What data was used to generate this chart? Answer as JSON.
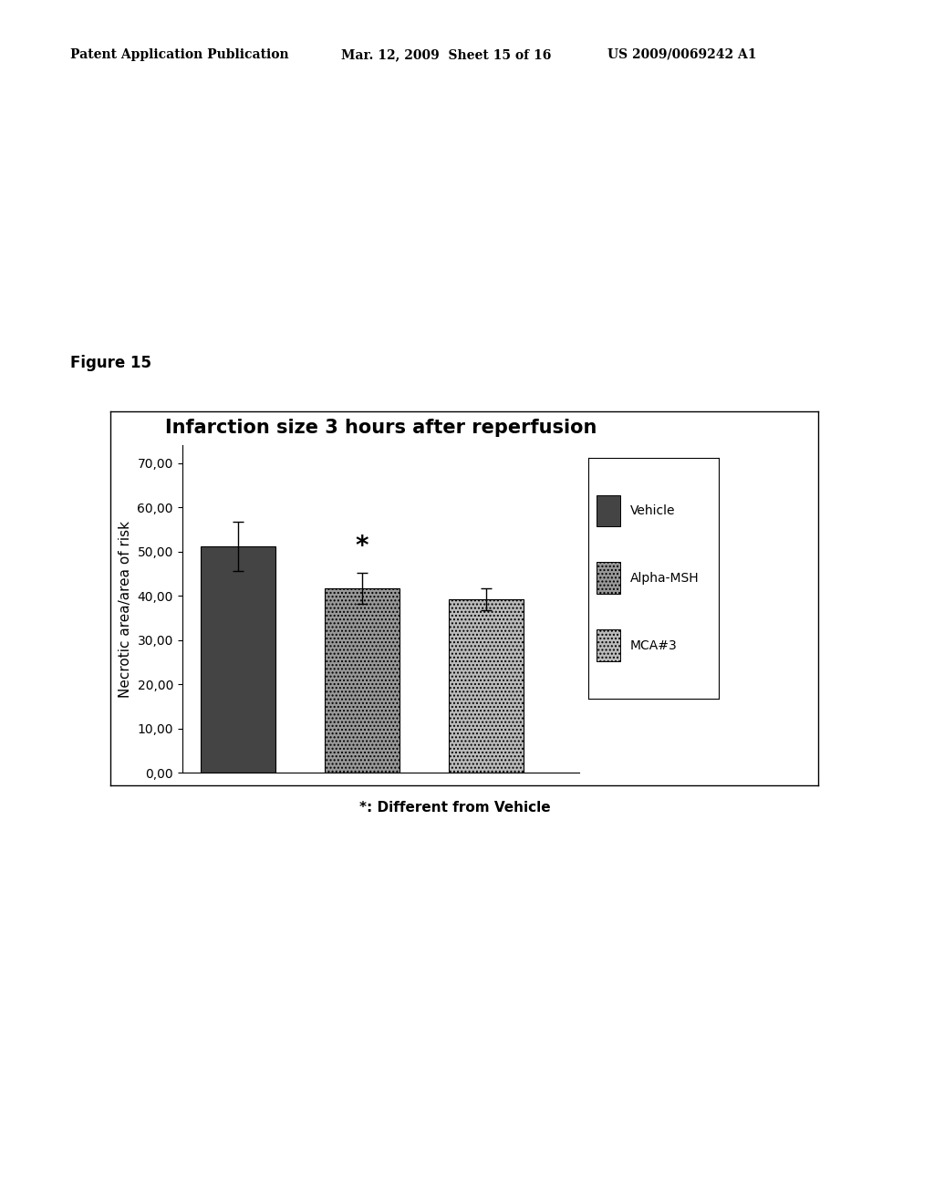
{
  "title": "Infarction size 3 hours after reperfusion",
  "ylabel": "Necrotic area/area of risk",
  "categories": [
    "Vehicle",
    "Alpha-MSH",
    "MCA#3"
  ],
  "values": [
    51.2,
    41.8,
    39.3
  ],
  "errors": [
    5.5,
    3.5,
    2.5
  ],
  "ytick_labels": [
    "0,00",
    "10,00",
    "20,00",
    "30,00",
    "40,00",
    "50,00",
    "60,00",
    "70,00"
  ],
  "ytick_values": [
    0.0,
    10.0,
    20.0,
    30.0,
    40.0,
    50.0,
    60.0,
    70.0
  ],
  "ylim": [
    0,
    74
  ],
  "bar_colors": [
    "#444444",
    "#999999",
    "#bbbbbb"
  ],
  "bar_edgecolor": "#000000",
  "bar_width": 0.6,
  "bar_positions": [
    1,
    2,
    3
  ],
  "legend_labels": [
    "Vehicle",
    "Alpha-MSH",
    "MCA#3"
  ],
  "legend_colors": [
    "#444444",
    "#999999",
    "#bbbbbb"
  ],
  "significance_symbol": "*",
  "significance_bar_idx": 2,
  "header_left": "Patent Application Publication",
  "header_mid": "Mar. 12, 2009  Sheet 15 of 16",
  "header_right": "US 2009/0069242 A1",
  "figure_label": "Figure 15",
  "footnote": "*: Different from Vehicle",
  "background_color": "#ffffff",
  "title_fontsize": 15,
  "axis_fontsize": 11,
  "tick_fontsize": 10,
  "legend_fontsize": 10,
  "header_fontsize": 10
}
